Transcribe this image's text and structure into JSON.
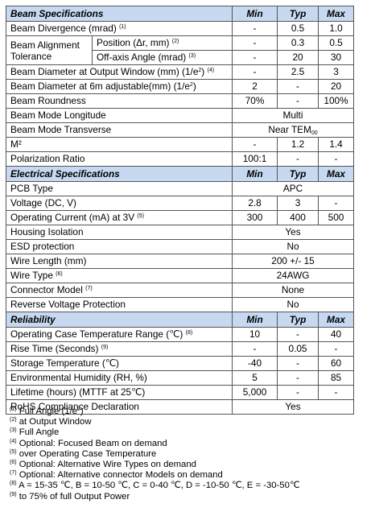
{
  "beam": {
    "title": "Beam Specifications",
    "min": "Min",
    "typ": "Typ",
    "max": "Max",
    "rows": {
      "divergence": {
        "label": "Beam Divergence (mrad)",
        "sup": "(1)",
        "min": "-",
        "typ": "0.5",
        "max": "1.0"
      },
      "alignment": {
        "label": "Beam Alignment Tolerance",
        "position": {
          "label": "Position (Δr, mm)",
          "sup": "(2)",
          "min": "-",
          "typ": "0.3",
          "max": "0.5"
        },
        "offaxis": {
          "label": "Off-axis Angle (mrad)",
          "sup": "(3)",
          "min": "-",
          "typ": "20",
          "max": "30"
        }
      },
      "diam_window": {
        "label_a": "Beam Diameter at Output Window (mm) (1/e",
        "sq": "2",
        "label_b": ")",
        "sup": "(4)",
        "min": "-",
        "typ": "2.5",
        "max": "3"
      },
      "diam_6m": {
        "label_a": "Beam Diameter at 6m adjustable(mm) (1/e",
        "sq": "2",
        "label_b": ")",
        "min": "2",
        "typ": "-",
        "max": "20"
      },
      "roundness": {
        "label": "Beam Roundness",
        "min": "70%",
        "typ": "-",
        "max": "100%"
      },
      "mode_long": {
        "label": "Beam Mode Longitude",
        "value": "Multi"
      },
      "mode_trans": {
        "label": "Beam Mode Transverse",
        "value_a": "Near TEM",
        "value_sub": "00"
      },
      "m2": {
        "label": "M²",
        "min": "-",
        "typ": "1.2",
        "max": "1.4"
      },
      "polarization": {
        "label": "Polarization Ratio",
        "min": "100:1",
        "typ": "-",
        "max": "-"
      }
    }
  },
  "electrical": {
    "title": "Electrical Specifications",
    "min": "Min",
    "typ": "Typ",
    "max": "Max",
    "rows": {
      "pcb": {
        "label": "PCB Type",
        "value": "APC"
      },
      "voltage": {
        "label": "Voltage (DC, V)",
        "min": "2.8",
        "typ": "3",
        "max": "-"
      },
      "current": {
        "label": "Operating Current (mA) at 3V",
        "sup": "(5)",
        "min": "300",
        "typ": "400",
        "max": "500"
      },
      "housing": {
        "label": "Housing Isolation",
        "value": "Yes"
      },
      "esd": {
        "label": "ESD protection",
        "value": "No"
      },
      "wire_length": {
        "label": "Wire Length (mm)",
        "value": "200 +/- 15"
      },
      "wire_type": {
        "label": "Wire Type",
        "sup": "(6)",
        "value": "24AWG"
      },
      "connector": {
        "label": "Connector Model",
        "sup": "(7)",
        "value": "None"
      },
      "reverse": {
        "label": "Reverse Voltage Protection",
        "value": "No"
      }
    }
  },
  "reliability": {
    "title": "Reliability",
    "min": "Min",
    "typ": "Typ",
    "max": "Max",
    "rows": {
      "case_temp": {
        "label": "Operating Case Temperature Range (℃)",
        "sup": "(8)",
        "min": "10",
        "typ": "-",
        "max": "40"
      },
      "rise": {
        "label": "Rise Time (Seconds)",
        "sup": "(9)",
        "min": "-",
        "typ": "0.05",
        "max": "-"
      },
      "storage": {
        "label": "Storage Temperature (℃)",
        "min": "-40",
        "typ": "-",
        "max": "60"
      },
      "humidity": {
        "label": "Environmental Humidity (RH, %)",
        "min": "5",
        "typ": "-",
        "max": "85"
      },
      "lifetime": {
        "label": "Lifetime (hours) (MTTF at 25℃)",
        "min": "5,000",
        "typ": "-",
        "max": "-"
      },
      "rohs": {
        "label": "RoHS Compliance Declaration",
        "value": "Yes"
      }
    }
  },
  "notes": [
    {
      "num": "(1)",
      "text_a": " Full Angle (1/e",
      "sq": "2",
      "text_b": ")"
    },
    {
      "num": "(2)",
      "text": " at Output Window"
    },
    {
      "num": "(3)",
      "text": " Full Angle"
    },
    {
      "num": "(4)",
      "text": " Optional: Focused Beam on demand"
    },
    {
      "num": "(5)",
      "text": " over Operating Case Temperature"
    },
    {
      "num": "(6)",
      "text": " Optional: Alternative Wire Types on demand"
    },
    {
      "num": "(7)",
      "text": " Optional: Alternative connector Models on demand"
    },
    {
      "num": "(8)",
      "text": " A = 15-35 ℃, B = 10-50 ℃, C = 0-40 ℃, D = -10-50 ℃, E = -30-50℃"
    },
    {
      "num": "(9)",
      "text": " to 75% of full Output Power"
    }
  ]
}
